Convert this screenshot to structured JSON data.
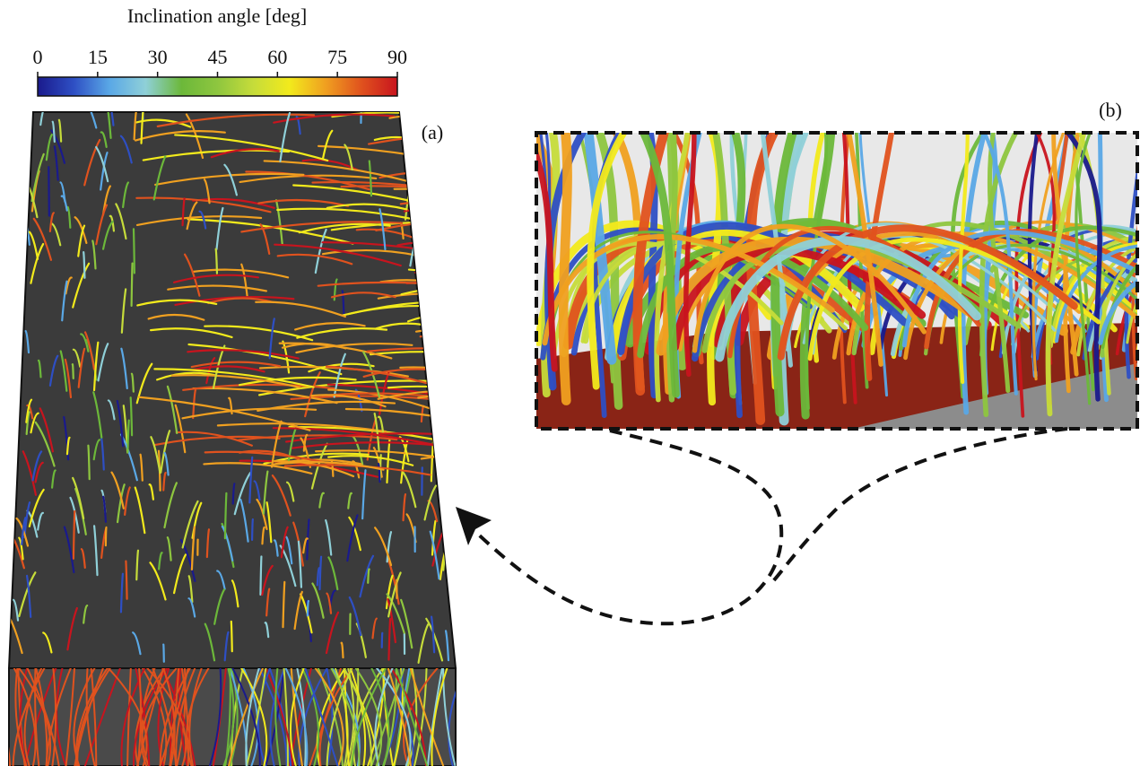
{
  "colorbar": {
    "title": "Inclination angle [deg]",
    "lim": [
      0,
      90
    ],
    "ticks": [
      0,
      15,
      30,
      45,
      60,
      75,
      90
    ],
    "colors": [
      "#1a1a8c",
      "#2e4fc4",
      "#5aa8e6",
      "#8fd0d8",
      "#6cb83a",
      "#8ec63f",
      "#c6dc3a",
      "#f2ea1c",
      "#f0a020",
      "#e0521e",
      "#c8141e"
    ]
  },
  "panels": [
    {
      "label": "(a)"
    },
    {
      "label": "(b)"
    }
  ]
}
